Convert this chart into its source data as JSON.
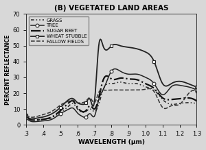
{
  "title": "(B) VEGETATED LAND AREAS",
  "xlabel": "WAVELENGTH (μm)",
  "ylabel": "PERCENT REFLECTANCE",
  "xlim": [
    0.3,
    1.3
  ],
  "ylim": [
    0,
    70
  ],
  "yticks": [
    0,
    10,
    20,
    30,
    40,
    50,
    60,
    70
  ],
  "xticks": [
    0.3,
    0.4,
    0.5,
    0.6,
    0.7,
    0.8,
    0.9,
    1.0,
    1.1,
    1.2,
    1.3
  ],
  "xtick_labels": [
    ".3",
    ".4",
    ".5",
    ".6",
    ".7",
    ".8",
    ".9",
    "1.0",
    "1.1",
    "1.2",
    "1.3"
  ],
  "background_color": "#d8d8d8",
  "line_color": "#1a1a1a",
  "series": {
    "GRASS": {
      "x": [
        0.3,
        0.32,
        0.35,
        0.4,
        0.45,
        0.5,
        0.55,
        0.575,
        0.6,
        0.625,
        0.65,
        0.675,
        0.7,
        0.725,
        0.75,
        0.8,
        0.85,
        0.9,
        0.95,
        1.0,
        1.05,
        1.1,
        1.15,
        1.2,
        1.25,
        1.3
      ],
      "y": [
        5.0,
        3.5,
        3.0,
        3.5,
        4.5,
        8.0,
        12.0,
        13.5,
        10.0,
        8.0,
        8.5,
        10.0,
        8.5,
        13.0,
        22.0,
        26.0,
        27.0,
        26.0,
        26.0,
        24.0,
        22.0,
        16.0,
        13.0,
        13.5,
        14.0,
        13.5
      ],
      "linestyle": "-.",
      "marker": null,
      "linewidth": 1.2
    },
    "TREE": {
      "x": [
        0.3,
        0.32,
        0.35,
        0.4,
        0.45,
        0.5,
        0.55,
        0.575,
        0.6,
        0.625,
        0.65,
        0.675,
        0.7,
        0.725,
        0.75,
        0.8,
        0.85,
        0.9,
        0.95,
        1.0,
        1.05,
        1.1,
        1.15,
        1.2,
        1.25,
        1.3
      ],
      "y": [
        4.5,
        2.5,
        2.0,
        2.5,
        3.5,
        7.0,
        10.0,
        10.5,
        7.5,
        5.5,
        5.0,
        7.0,
        5.5,
        16.0,
        22.0,
        34.0,
        34.0,
        32.0,
        32.0,
        30.0,
        26.0,
        19.0,
        24.0,
        25.0,
        24.0,
        22.0
      ],
      "linestyle": "-",
      "marker": "o",
      "marker_interval": 5,
      "linewidth": 1.2
    },
    "SUGAR BEET": {
      "x": [
        0.3,
        0.32,
        0.35,
        0.4,
        0.45,
        0.5,
        0.55,
        0.575,
        0.6,
        0.625,
        0.65,
        0.675,
        0.7,
        0.725,
        0.75,
        0.8,
        0.85,
        0.9,
        0.95,
        1.0,
        1.05,
        1.1,
        1.15,
        1.2,
        1.25,
        1.3
      ],
      "y": [
        5.5,
        3.5,
        3.0,
        3.5,
        5.0,
        9.0,
        14.0,
        15.0,
        11.0,
        8.5,
        9.0,
        12.0,
        10.0,
        17.0,
        28.0,
        29.0,
        29.5,
        29.0,
        28.5,
        26.0,
        23.0,
        17.0,
        16.0,
        16.5,
        17.0,
        15.0
      ],
      "linestyle": "-.",
      "marker": null,
      "linewidth": 1.8
    },
    "WHEAT STUBBLE": {
      "x": [
        0.3,
        0.32,
        0.35,
        0.4,
        0.45,
        0.5,
        0.55,
        0.575,
        0.6,
        0.625,
        0.65,
        0.675,
        0.7,
        0.725,
        0.75,
        0.8,
        0.85,
        0.9,
        0.95,
        1.0,
        1.05,
        1.1,
        1.15,
        1.2,
        1.25,
        1.3
      ],
      "y": [
        6.0,
        4.0,
        4.0,
        5.0,
        7.0,
        11.0,
        16.0,
        16.5,
        14.0,
        13.0,
        14.0,
        16.0,
        15.0,
        50.0,
        50.0,
        50.0,
        50.0,
        49.0,
        48.0,
        46.0,
        40.0,
        26.0,
        26.0,
        27.5,
        26.0,
        24.0
      ],
      "linestyle": "-",
      "marker": "s",
      "marker_interval": 5,
      "linewidth": 1.5
    },
    "FALLOW FIELDS": {
      "x": [
        0.3,
        0.32,
        0.35,
        0.4,
        0.45,
        0.5,
        0.55,
        0.575,
        0.6,
        0.625,
        0.65,
        0.675,
        0.7,
        0.725,
        0.75,
        0.8,
        0.85,
        0.9,
        0.95,
        1.0,
        1.05,
        1.1,
        1.15,
        1.2,
        1.25,
        1.3
      ],
      "y": [
        6.5,
        5.0,
        5.0,
        6.5,
        8.5,
        12.5,
        15.0,
        15.5,
        14.0,
        14.0,
        15.0,
        17.0,
        14.0,
        20.5,
        22.0,
        22.0,
        22.0,
        22.0,
        22.0,
        22.5,
        21.0,
        11.0,
        12.0,
        13.0,
        19.5,
        20.0
      ],
      "linestyle": "--",
      "marker": null,
      "linewidth": 1.2
    }
  }
}
